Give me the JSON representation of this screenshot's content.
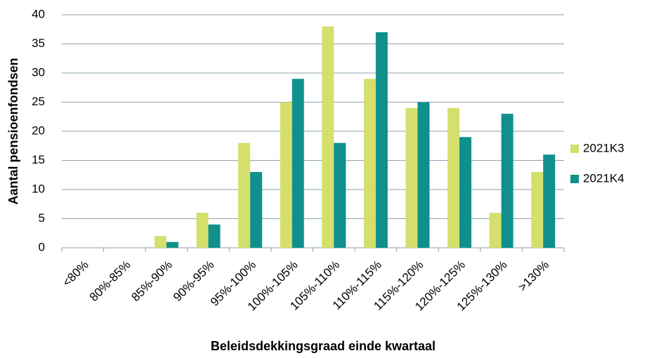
{
  "chart_data": {
    "type": "bar",
    "x_label": "Beleidsdekkingsgraad einde kwartaal",
    "y_label": "Aantal pensioenfondsen",
    "categories": [
      "<80%",
      "80%-85%",
      "85%-90%",
      "90%-95%",
      "95%-100%",
      "100%-105%",
      "105%-110%",
      "110%-115%",
      "115%-120%",
      "120%-125%",
      "125%-130%",
      ">130%"
    ],
    "series": [
      {
        "name": "2021K3",
        "color": "#d4df6c",
        "values": [
          0,
          0,
          2,
          6,
          18,
          25,
          38,
          29,
          24,
          24,
          6,
          13
        ]
      },
      {
        "name": "2021K4",
        "color": "#10908d",
        "values": [
          0,
          0,
          1,
          4,
          13,
          29,
          18,
          37,
          25,
          19,
          23,
          16
        ]
      }
    ],
    "ylim": [
      0,
      40
    ],
    "yticks": [
      0,
      5,
      10,
      15,
      20,
      25,
      30,
      35,
      40
    ],
    "grid": true,
    "legend": "right"
  }
}
